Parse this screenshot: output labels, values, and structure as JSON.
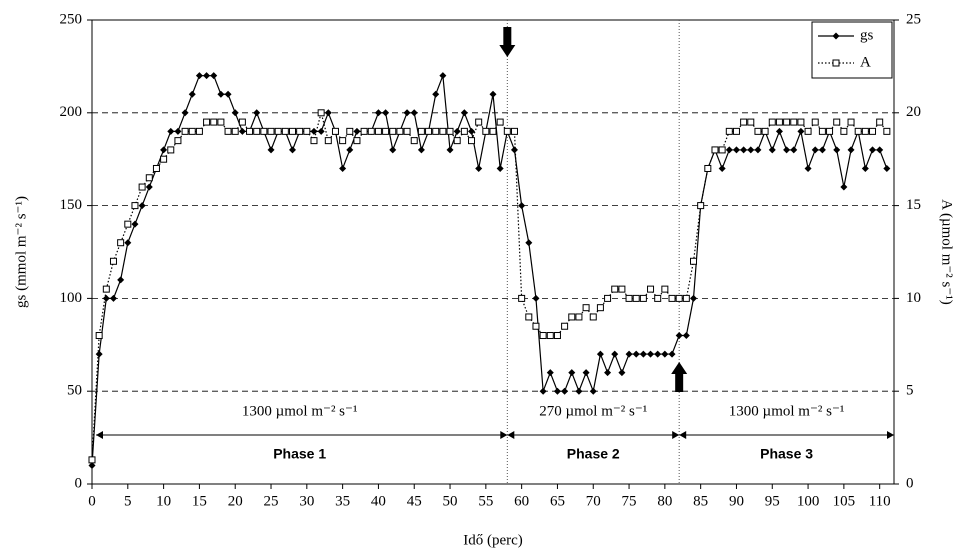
{
  "chart_data": {
    "type": "line",
    "x_label": "Idő (perc)",
    "y_label": "gs (mmol m⁻² s⁻¹)",
    "y2_label": "A (µmol m⁻² s⁻¹)",
    "x": [
      0,
      1,
      2,
      3,
      4,
      5,
      6,
      7,
      8,
      9,
      10,
      11,
      12,
      13,
      14,
      15,
      16,
      17,
      18,
      19,
      20,
      21,
      22,
      23,
      24,
      25,
      26,
      27,
      28,
      29,
      30,
      31,
      32,
      33,
      34,
      35,
      36,
      37,
      38,
      39,
      40,
      41,
      42,
      43,
      44,
      45,
      46,
      47,
      48,
      49,
      50,
      51,
      52,
      53,
      54,
      55,
      56,
      57,
      58,
      59,
      60,
      61,
      62,
      63,
      64,
      65,
      66,
      67,
      68,
      69,
      70,
      71,
      72,
      73,
      74,
      75,
      76,
      77,
      78,
      79,
      80,
      81,
      82,
      83,
      84,
      85,
      86,
      87,
      88,
      89,
      90,
      91,
      92,
      93,
      94,
      95,
      96,
      97,
      98,
      99,
      100,
      101,
      102,
      103,
      104,
      105,
      106,
      107,
      108,
      109,
      110,
      111
    ],
    "series": [
      {
        "name": "gs",
        "color": "#000000",
        "marker": "diamond",
        "dash": "solid",
        "values": [
          10,
          70,
          100,
          100,
          110,
          130,
          140,
          150,
          160,
          170,
          180,
          190,
          190,
          200,
          210,
          220,
          220,
          220,
          210,
          210,
          200,
          190,
          190,
          200,
          190,
          180,
          190,
          190,
          180,
          190,
          190,
          190,
          190,
          200,
          190,
          170,
          180,
          190,
          190,
          190,
          200,
          200,
          180,
          190,
          200,
          200,
          180,
          190,
          210,
          220,
          180,
          190,
          200,
          190,
          170,
          190,
          210,
          170,
          190,
          180,
          150,
          130,
          100,
          50,
          60,
          50,
          50,
          60,
          50,
          60,
          50,
          70,
          60,
          70,
          60,
          70,
          70,
          70,
          70,
          70,
          70,
          70,
          80,
          80,
          100,
          150,
          170,
          180,
          170,
          180,
          180,
          180,
          180,
          180,
          190,
          180,
          190,
          180,
          180,
          190,
          170,
          180,
          180,
          190,
          180,
          160,
          180,
          190,
          170,
          180,
          180,
          170
        ]
      },
      {
        "name": "A",
        "color": "#000000",
        "marker": "square",
        "dash": "dotted",
        "axis": "y2",
        "values": [
          1.3,
          8,
          10.5,
          12,
          13,
          14,
          15,
          16,
          16.5,
          17,
          17.5,
          18,
          18.5,
          19,
          19,
          19,
          19.5,
          19.5,
          19.5,
          19,
          19,
          19.5,
          19,
          19,
          19,
          19,
          19,
          19,
          19,
          19,
          19,
          18.5,
          20,
          18.5,
          19,
          18.5,
          19,
          18.5,
          19,
          19,
          19,
          19,
          19,
          19,
          19,
          18.5,
          19,
          19,
          19,
          19,
          19,
          18.5,
          19,
          18.5,
          19.5,
          19,
          19,
          19.5,
          19,
          19,
          10,
          9,
          8.5,
          8,
          8,
          8,
          8.5,
          9,
          9,
          9.5,
          9,
          9.5,
          10,
          10.5,
          10.5,
          10,
          10,
          10,
          10.5,
          10,
          10.5,
          10,
          10,
          10,
          12,
          15,
          17,
          18,
          18,
          19,
          19,
          19.5,
          19.5,
          19,
          19,
          19.5,
          19.5,
          19.5,
          19.5,
          19.5,
          19,
          19.5,
          19,
          19,
          19.5,
          19,
          19.5,
          19,
          19,
          19,
          19.5,
          19
        ]
      }
    ],
    "xlim": [
      0,
      112
    ],
    "xticks": [
      0,
      5,
      10,
      15,
      20,
      25,
      30,
      35,
      40,
      45,
      50,
      55,
      60,
      65,
      70,
      75,
      80,
      85,
      90,
      95,
      100,
      105,
      110
    ],
    "ylim": [
      0,
      250
    ],
    "yticks": [
      0,
      50,
      100,
      150,
      200,
      250
    ],
    "y2lim": [
      0,
      25
    ],
    "y2ticks": [
      0,
      5,
      10,
      15,
      20,
      25
    ],
    "grid": true,
    "legend": "top-right",
    "phases": [
      {
        "label": "Phase 1",
        "light": "1300 µmol m⁻² s⁻¹",
        "start": 0,
        "end": 58
      },
      {
        "label": "Phase 2",
        "light": "270 µmol m⁻² s⁻¹",
        "start": 58,
        "end": 82
      },
      {
        "label": "Phase 3",
        "light": "1300 µmol m⁻² s⁻¹",
        "start": 82,
        "end": 112
      }
    ]
  }
}
